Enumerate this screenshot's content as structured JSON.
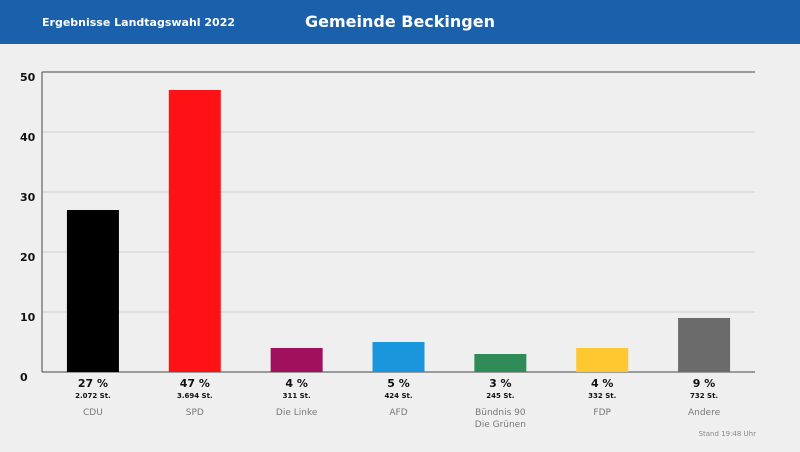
{
  "header": {
    "label": "Ergebnisse Landtagswahl 2022"
  },
  "chart_data": {
    "type": "bar",
    "title": "Gemeinde Beckingen",
    "categories": [
      "CDU",
      "SPD",
      "Die Linke",
      "AFD",
      "Bündnis 90\nDie Grünen",
      "FDP",
      "Andere"
    ],
    "values": [
      27,
      47,
      4,
      5,
      3,
      4,
      9
    ],
    "value_labels": [
      "27 %",
      "47 %",
      "4 %",
      "5 %",
      "3 %",
      "4 %",
      "9 %"
    ],
    "vote_labels": [
      "2.072 St.",
      "3.694 St.",
      "311 St.",
      "424 St.",
      "245 St.",
      "332 St.",
      "732 St."
    ],
    "colors": [
      "#000000",
      "#ff1216",
      "#a0105c",
      "#1a96dc",
      "#2f8c58",
      "#ffc830",
      "#6b6b6b"
    ],
    "ylim": [
      0,
      50
    ],
    "yticks": [
      0,
      10,
      20,
      30,
      40,
      50
    ],
    "grid": true
  },
  "footer": {
    "timestamp": "Stand 19:48 Uhr"
  }
}
